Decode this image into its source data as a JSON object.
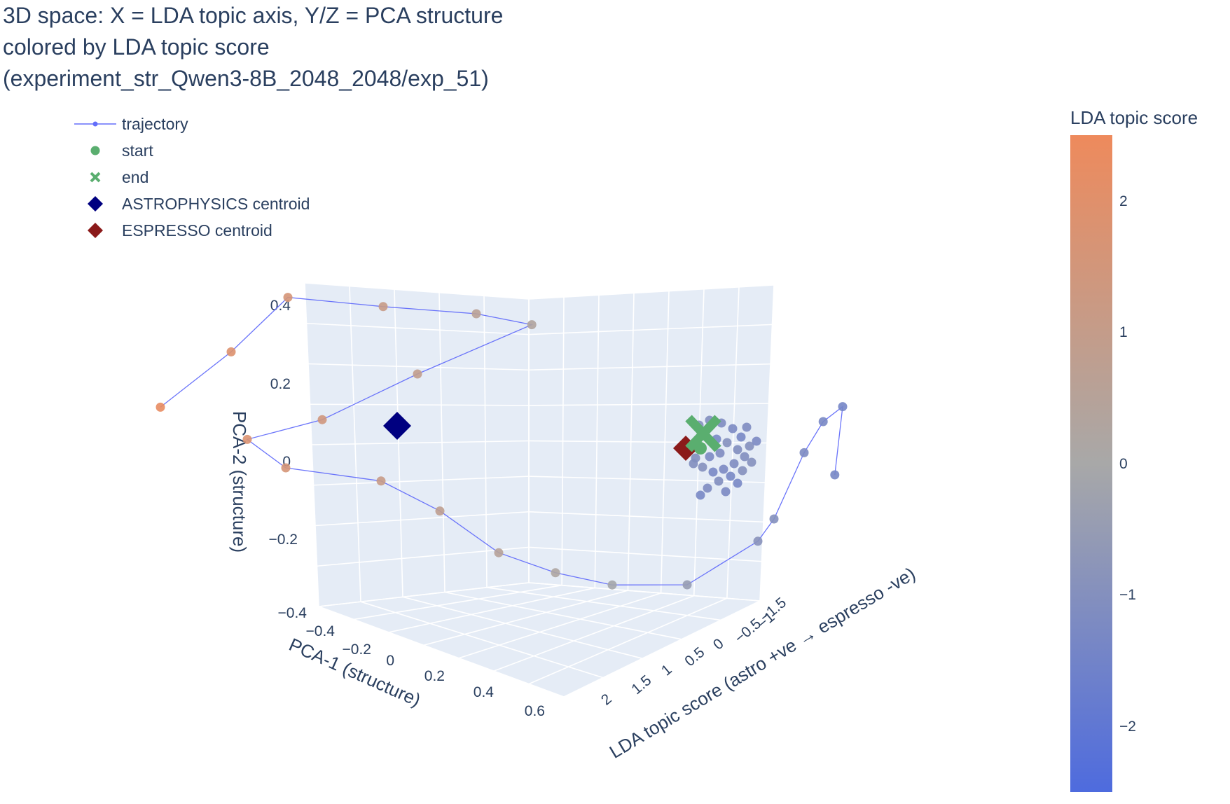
{
  "title_lines": [
    "3D space: X = LDA topic axis, Y/Z = PCA structure",
    "colored by LDA topic score",
    "(experiment_str_Qwen3-8B_2048_2048/exp_51)"
  ],
  "chart_data": {
    "type": "scatter",
    "projection": "3d",
    "title": "3D space: X = LDA topic axis, Y/Z = PCA structure colored by LDA topic score (experiment_str_Qwen3-8B_2048_2048/exp_51)",
    "xlabel": "LDA topic score (astro +ve → espresso -ve)",
    "ylabel": "PCA-1 (structure)",
    "zlabel": "PCA-2 (structure)",
    "x_ticks": [
      "−1.5",
      "−1",
      "−0.5",
      "0",
      "0.5",
      "1",
      "1.5",
      "2"
    ],
    "y_ticks": [
      "−0.4",
      "−0.2",
      "0",
      "0.2",
      "0.4",
      "0.6"
    ],
    "z_ticks": [
      "0.4",
      "0.2",
      "0",
      "−0.2",
      "−0.4"
    ],
    "legend": {
      "placement": "top-left",
      "entries": [
        {
          "name": "trajectory",
          "symbol": "line-marker",
          "color": "#636efa"
        },
        {
          "name": "start",
          "symbol": "circle",
          "color": "#5aae6f"
        },
        {
          "name": "end",
          "symbol": "x",
          "color": "#5aae6f"
        },
        {
          "name": "ASTROPHYSICS centroid",
          "symbol": "diamond",
          "color": "#000080"
        },
        {
          "name": "ESPRESSO centroid",
          "symbol": "diamond",
          "color": "#8b1a1a"
        }
      ]
    },
    "colorbar": {
      "title": "LDA topic score",
      "range": [
        -2.5,
        2.5
      ],
      "ticks": [
        2,
        1,
        0,
        -1,
        -2
      ],
      "tick_labels": [
        "2",
        "1",
        "0",
        "−1",
        "−2"
      ],
      "colors": [
        "#4e6bde",
        "#a8a8a8",
        "#ee8a5c"
      ]
    },
    "centroids": [
      {
        "name": "ASTROPHYSICS centroid",
        "lda": 1.5,
        "pca1": -0.15,
        "pca2": 0.07
      },
      {
        "name": "ESPRESSO centroid",
        "lda": -1.2,
        "pca1": 0.1,
        "pca2": 0.02
      }
    ],
    "start": {
      "lda": -1.15,
      "pca1": 0.12,
      "pca2": 0.04
    },
    "end": {
      "lda": -1.1,
      "pca1": 0.13,
      "pca2": 0.05
    },
    "trajectory": [
      {
        "lda": 2.3,
        "pca1": -0.05,
        "pca2": 0.15
      },
      {
        "lda": 1.9,
        "pca1": -0.1,
        "pca2": 0.28
      },
      {
        "lda": 1.6,
        "pca1": -0.05,
        "pca2": 0.42
      },
      {
        "lda": 1.1,
        "pca1": 0.05,
        "pca2": 0.4
      },
      {
        "lda": 0.6,
        "pca1": 0.1,
        "pca2": 0.38
      },
      {
        "lda": 0.3,
        "pca1": 0.12,
        "pca2": 0.35
      },
      {
        "lda": 0.9,
        "pca1": 0.0,
        "pca2": 0.22
      },
      {
        "lda": 1.4,
        "pca1": -0.1,
        "pca2": 0.1
      },
      {
        "lda": 1.8,
        "pca1": -0.15,
        "pca2": 0.05
      },
      {
        "lda": 1.6,
        "pca1": -0.1,
        "pca2": -0.02
      },
      {
        "lda": 1.1,
        "pca1": 0.0,
        "pca2": -0.05
      },
      {
        "lda": 0.8,
        "pca1": 0.1,
        "pca2": -0.12
      },
      {
        "lda": 0.5,
        "pca1": 0.2,
        "pca2": -0.22
      },
      {
        "lda": 0.2,
        "pca1": 0.25,
        "pca2": -0.27
      },
      {
        "lda": -0.1,
        "pca1": 0.3,
        "pca2": -0.3
      },
      {
        "lda": -0.5,
        "pca1": 0.35,
        "pca2": -0.3
      },
      {
        "lda": -0.9,
        "pca1": 0.3,
        "pca2": -0.2
      },
      {
        "lda": -1.0,
        "pca1": 0.25,
        "pca2": -0.15
      },
      {
        "lda": -1.2,
        "pca1": 0.1,
        "pca2": 0.0
      },
      {
        "lda": -1.3,
        "pca1": 0.12,
        "pca2": 0.08
      },
      {
        "lda": -1.4,
        "pca1": 0.15,
        "pca2": 0.12
      },
      {
        "lda": -1.35,
        "pca1": 0.18,
        "pca2": -0.05
      }
    ]
  }
}
